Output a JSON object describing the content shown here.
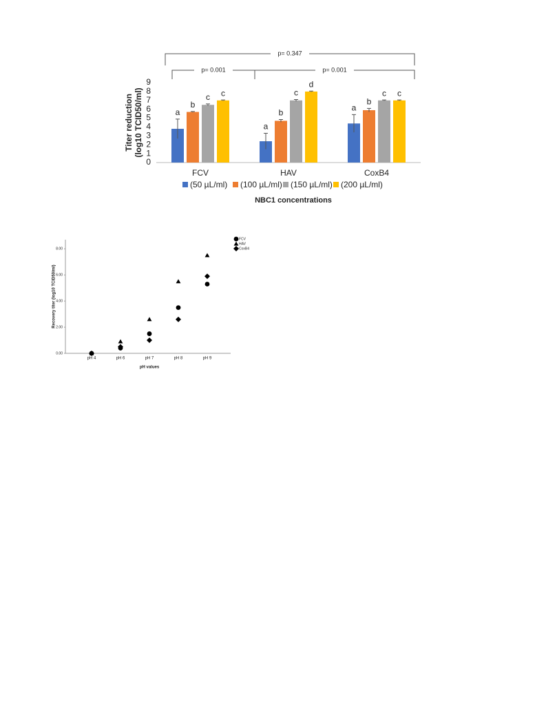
{
  "chart_data": [
    {
      "type": "bar",
      "ylabel": [
        "Titer reduction",
        "(log10 TCID50/ml)"
      ],
      "xlabel": "NBC1 concentrations",
      "categories": [
        "FCV",
        "HAV",
        "CoxB4"
      ],
      "series": [
        {
          "name": "(50 µL/ml)",
          "color": "#4472c4",
          "values": [
            3.8,
            2.4,
            4.4
          ],
          "errors": [
            1.1,
            0.9,
            1.0
          ],
          "letters": [
            "a",
            "a",
            "a"
          ]
        },
        {
          "name": "(100 µL/ml)",
          "color": "#ed7d31",
          "values": [
            5.7,
            4.7,
            5.9
          ],
          "errors": [
            0.05,
            0.15,
            0.2
          ],
          "letters": [
            "b",
            "b",
            "b"
          ]
        },
        {
          "name": "(150 µL/ml)",
          "color": "#a5a5a5",
          "values": [
            6.5,
            7.0,
            7.0
          ],
          "errors": [
            0.1,
            0.1,
            0.05
          ],
          "letters": [
            "c",
            "c",
            "c"
          ]
        },
        {
          "name": "(200 µL/ml)",
          "color": "#ffc000",
          "values": [
            7.0,
            8.0,
            7.0
          ],
          "errors": [
            0.05,
            0.05,
            0.05
          ],
          "letters": [
            "c",
            "d",
            "c"
          ]
        }
      ],
      "comparisons": [
        {
          "from": "FCV",
          "to": "CoxB4",
          "label": "p= 0.347"
        },
        {
          "from": "FCV",
          "to": "HAV",
          "label": "p= 0.001"
        },
        {
          "from": "HAV",
          "to": "CoxB4",
          "label": "p= 0.001"
        }
      ],
      "ylim": [
        0,
        9
      ],
      "yticks": [
        0,
        1,
        2,
        3,
        4,
        5,
        6,
        7,
        8,
        9
      ]
    },
    {
      "type": "scatter",
      "ylabel": "Recovery titer (log10 TCID50/ml)",
      "xlabel": "pH values",
      "categories": [
        "pH 4",
        "pH 6",
        "pH 7",
        "pH 8",
        "pH 9"
      ],
      "series": [
        {
          "name": "FCV",
          "marker": "circle",
          "color": "#000000",
          "values": [
            0,
            0.4,
            1.5,
            3.5,
            5.3
          ]
        },
        {
          "name": "HAV",
          "marker": "triangle",
          "color": "#000000",
          "values": [
            0,
            0.9,
            2.6,
            5.5,
            7.5
          ]
        },
        {
          "name": "CoxB4",
          "marker": "diamond",
          "color": "#000000",
          "values": [
            0,
            0.5,
            1.0,
            2.6,
            5.9
          ]
        }
      ],
      "ylim": [
        0,
        8.7
      ],
      "yticks": [
        {
          "value": 0,
          "label": "0.00"
        },
        {
          "value": 2,
          "label": "2.00"
        },
        {
          "value": 4,
          "label": "4.00"
        },
        {
          "value": 6,
          "label": "6.00"
        },
        {
          "value": 8,
          "label": "8.00"
        }
      ]
    }
  ]
}
